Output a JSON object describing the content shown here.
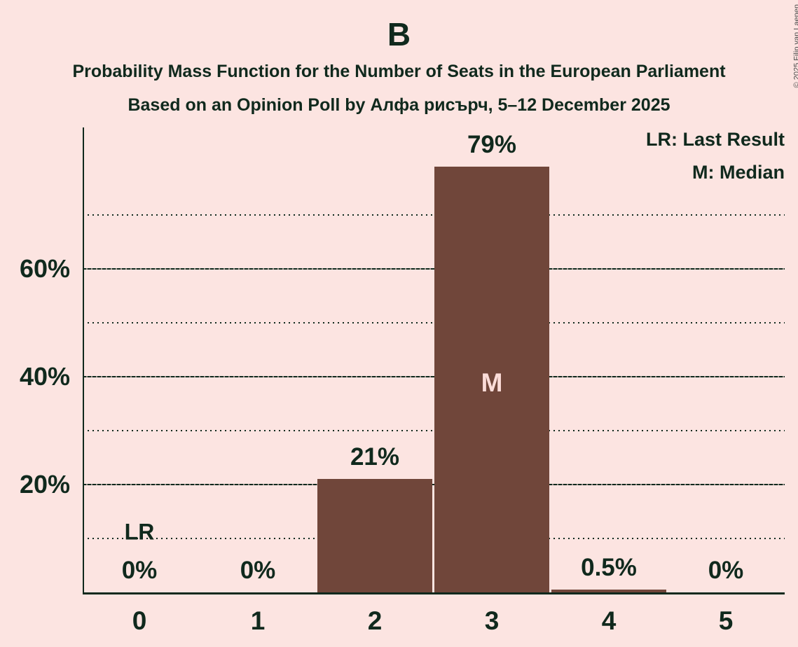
{
  "page": {
    "background_color": "#fce4e1",
    "text_color": "#10291d"
  },
  "header": {
    "title": "B",
    "subtitle": "Probability Mass Function for the Number of Seats in the European Parliament",
    "sub_subtitle": "Based on an Opinion Poll by Алфа рисърч, 5–12 December 2025"
  },
  "legend": {
    "lr": "LR: Last Result",
    "m": "M: Median"
  },
  "copyright": "© 2025 Filip van Laenen",
  "chart_data": {
    "type": "bar",
    "title": "B",
    "xlabel": "",
    "ylabel": "",
    "categories": [
      "0",
      "1",
      "2",
      "3",
      "4",
      "5"
    ],
    "values": [
      0,
      0,
      21,
      79,
      0.5,
      0
    ],
    "value_labels": [
      "0%",
      "0%",
      "21%",
      "79%",
      "0.5%",
      "0%"
    ],
    "ylim": [
      0,
      86
    ],
    "grid": true,
    "yticks": [
      {
        "value": 20,
        "label": "20%"
      },
      {
        "value": 40,
        "label": "40%"
      },
      {
        "value": 60,
        "label": "60%"
      }
    ],
    "dotted_gridlines": [
      10,
      30,
      50,
      70
    ],
    "legend_position": "top-right",
    "annotations": {
      "last_result": {
        "label": "LR",
        "seat_index": 0,
        "y_pct": 10
      },
      "median": {
        "label": "M",
        "seat_index": 3,
        "y_pct": 38.8
      }
    },
    "colors": {
      "bar": "#70463a",
      "bar_label": "#fbdcd8",
      "grid": "#10291d"
    }
  }
}
